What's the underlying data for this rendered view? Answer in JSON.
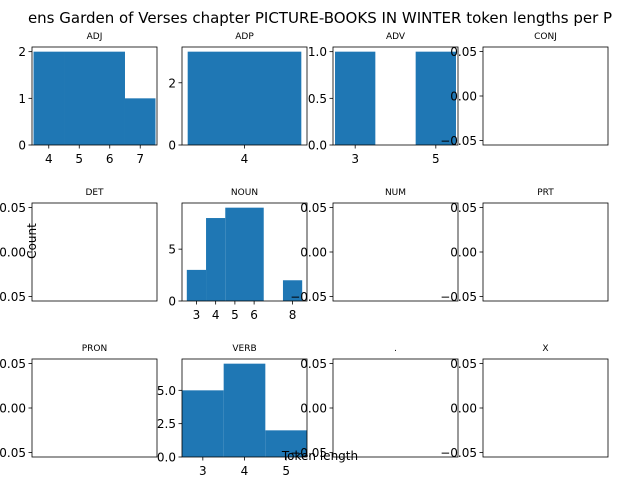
{
  "figure": {
    "title": "ens Garden of Verses chapter PICTURE-BOOKS IN WINTER token lengths per P",
    "xlabel": "Token length",
    "ylabel": "Count"
  },
  "colors": {
    "bar": "#1f77b4",
    "axis": "#000000",
    "background": "#ffffff"
  },
  "chart_data": [
    {
      "type": "bar",
      "title": "ADJ",
      "x": [
        4,
        5,
        6,
        7
      ],
      "values": [
        2,
        2,
        2,
        1
      ],
      "xlim": [
        3.45,
        7.55
      ],
      "ylim": [
        0,
        2.1
      ],
      "xticks": [
        4,
        5,
        6,
        7
      ],
      "yticks": [
        0,
        1,
        2
      ],
      "ytick_labels": [
        "0",
        "1",
        "2"
      ],
      "grid": false
    },
    {
      "type": "bar",
      "title": "ADP",
      "x": [
        4
      ],
      "values": [
        3
      ],
      "xlim": [
        3.45,
        4.55
      ],
      "ylim": [
        0,
        3.15
      ],
      "xticks": [
        4
      ],
      "yticks": [
        0,
        2
      ],
      "ytick_labels": [
        "0",
        "2"
      ],
      "grid": false
    },
    {
      "type": "bar",
      "title": "ADV",
      "x": [
        3,
        4,
        5
      ],
      "values": [
        1,
        0,
        1
      ],
      "xlim": [
        2.45,
        5.55
      ],
      "ylim": [
        0,
        1.05
      ],
      "xticks": [
        3,
        5
      ],
      "yticks": [
        0,
        0.5,
        1
      ],
      "ytick_labels": [
        "0.0",
        "0.5",
        "1.0"
      ],
      "grid": false
    },
    {
      "type": "bar",
      "title": "CONJ",
      "x": [],
      "values": [],
      "xlim": [
        0,
        1
      ],
      "ylim": [
        -0.055,
        0.055
      ],
      "xticks": [],
      "yticks": [
        -0.05,
        0,
        0.05
      ],
      "ytick_labels": [
        "−0.05",
        "0.00",
        "0.05"
      ],
      "grid": false
    },
    {
      "type": "bar",
      "title": "DET",
      "x": [],
      "values": [],
      "xlim": [
        0,
        1
      ],
      "ylim": [
        -0.055,
        0.055
      ],
      "xticks": [],
      "yticks": [
        -0.05,
        0,
        0.05
      ],
      "ytick_labels": [
        "−0.05",
        "0.00",
        "0.05"
      ],
      "grid": false
    },
    {
      "type": "bar",
      "title": "NOUN",
      "x": [
        3,
        4,
        5,
        6,
        7,
        8
      ],
      "values": [
        3,
        8,
        9,
        9,
        0,
        2
      ],
      "xlim": [
        2.25,
        8.75
      ],
      "ylim": [
        0,
        9.45
      ],
      "xticks": [
        3,
        4,
        5,
        6,
        8
      ],
      "yticks": [
        0,
        5
      ],
      "ytick_labels": [
        "0",
        "5"
      ],
      "grid": false
    },
    {
      "type": "bar",
      "title": "NUM",
      "x": [],
      "values": [],
      "xlim": [
        0,
        1
      ],
      "ylim": [
        -0.055,
        0.055
      ],
      "xticks": [],
      "yticks": [
        -0.05,
        0,
        0.05
      ],
      "ytick_labels": [
        "−0.05",
        "0.00",
        "0.05"
      ],
      "grid": false
    },
    {
      "type": "bar",
      "title": "PRT",
      "x": [],
      "values": [],
      "xlim": [
        0,
        1
      ],
      "ylim": [
        -0.055,
        0.055
      ],
      "xticks": [],
      "yticks": [
        -0.05,
        0,
        0.05
      ],
      "ytick_labels": [
        "−0.05",
        "0.00",
        "0.05"
      ],
      "grid": false
    },
    {
      "type": "bar",
      "title": "PRON",
      "x": [],
      "values": [],
      "xlim": [
        0,
        1
      ],
      "ylim": [
        -0.055,
        0.055
      ],
      "xticks": [],
      "yticks": [
        -0.05,
        0,
        0.05
      ],
      "ytick_labels": [
        "−0.05",
        "0.00",
        "0.05"
      ],
      "grid": false
    },
    {
      "type": "bar",
      "title": "VERB",
      "x": [
        3,
        4,
        5
      ],
      "values": [
        5,
        7,
        2
      ],
      "xlim": [
        2.5,
        5.5
      ],
      "ylim": [
        0,
        7.35
      ],
      "xticks": [
        3,
        4,
        5
      ],
      "yticks": [
        0,
        2.5,
        5
      ],
      "ytick_labels": [
        "0.0",
        "2.5",
        "5.0"
      ],
      "grid": false
    },
    {
      "type": "bar",
      "title": ".",
      "x": [],
      "values": [],
      "xlim": [
        0,
        1
      ],
      "ylim": [
        -0.055,
        0.055
      ],
      "xticks": [],
      "yticks": [
        -0.05,
        0,
        0.05
      ],
      "ytick_labels": [
        "−0.05",
        "0.00",
        "0.05"
      ],
      "grid": false
    },
    {
      "type": "bar",
      "title": "X",
      "x": [],
      "values": [],
      "xlim": [
        0,
        1
      ],
      "ylim": [
        -0.055,
        0.055
      ],
      "xticks": [],
      "yticks": [
        -0.05,
        0,
        0.05
      ],
      "ytick_labels": [
        "−0.05",
        "0.00",
        "0.05"
      ],
      "grid": false
    }
  ]
}
